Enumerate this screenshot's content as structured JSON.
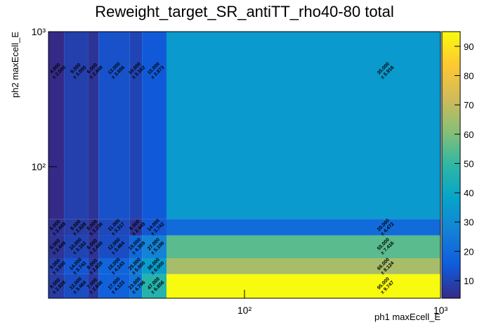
{
  "chart_data": {
    "type": "heatmap",
    "title": "Reweight_target_SR_antiTT_rho40-80 total",
    "x_label": "ph1 maxEcell_E",
    "y_label": "ph2 maxEcell_E",
    "x_edges": [
      10,
      12,
      16,
      18,
      26,
      30,
      40,
      1000
    ],
    "y_edges": [
      10.6,
      16,
      21,
      31,
      41,
      1000
    ],
    "xlim": [
      10,
      1000
    ],
    "ylim": [
      10.6,
      1000
    ],
    "log_x": true,
    "log_y": true,
    "xticks": [
      {
        "value": 100,
        "label": "10²"
      },
      {
        "value": 1000,
        "label": "10³"
      }
    ],
    "yticks": [
      {
        "value": 100,
        "label": "10²"
      },
      {
        "value": 1000,
        "label": "10³"
      }
    ],
    "zlim": [
      4,
      95
    ],
    "zticks": [
      10,
      20,
      30,
      40,
      50,
      60,
      70,
      80,
      90
    ],
    "colorscale": [
      "#352a87",
      "#0f5cdd",
      "#1481d6",
      "#06a4ca",
      "#2eb7a4",
      "#87bf77",
      "#d1bb59",
      "#fec832",
      "#f9fb0e"
    ],
    "values": [
      [
        8,
        12,
        7,
        17,
        23,
        47,
        95
      ],
      [
        9,
        14,
        8,
        18,
        25,
        36,
        66
      ],
      [
        6,
        10,
        6,
        12,
        19,
        27,
        55
      ],
      [
        6,
        8,
        5,
        11,
        6,
        14,
        20
      ],
      [
        4,
        9,
        6,
        13,
        10,
        15,
        35
      ]
    ],
    "value_labels": [
      [
        "8.000",
        "12.000",
        "7.000",
        "17.000",
        "23.000",
        "47.000",
        "95.000"
      ],
      [
        "9.000",
        "14.000",
        "8.000",
        "18.000",
        "25.000",
        "36.000",
        "66.000"
      ],
      [
        "6.000",
        "10.000",
        "6.000",
        "12.000",
        "19.000",
        "27.000",
        "55.000"
      ],
      [
        "6.000",
        "8.000",
        "5.000",
        "11.000",
        "6.000",
        "14.000",
        "20.000"
      ],
      [
        "4.000",
        "9.000",
        "6.000",
        "13.000",
        "10.000",
        "15.000",
        "35.000"
      ]
    ],
    "error_labels": [
      [
        "± 2.828",
        "± 3.464",
        "± 2.646",
        "± 4.123",
        "± 4.796",
        "± 6.856",
        "± 9.747"
      ],
      [
        "± 3.000",
        "± 3.742",
        "± 2.828",
        "± 4.243",
        "± 5.000",
        "± 6.000",
        "± 8.124"
      ],
      [
        "± 2.449",
        "± 3.162",
        "± 2.449",
        "± 3.464",
        "± 4.359",
        "± 5.196",
        "± 7.416"
      ],
      [
        "± 2.449",
        "± 2.828",
        "± 2.236",
        "± 3.317",
        "± 2.449",
        "± 3.742",
        "± 4.472"
      ],
      [
        "± 2.000",
        "± 3.000",
        "± 2.449",
        "± 3.606",
        "± 3.162",
        "± 3.873",
        "± 5.916"
      ]
    ]
  }
}
